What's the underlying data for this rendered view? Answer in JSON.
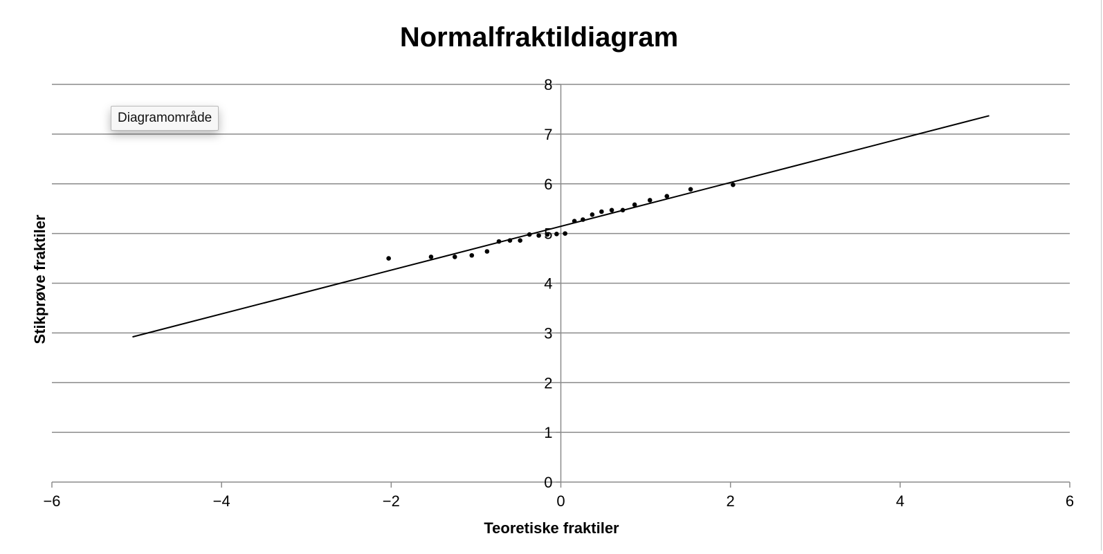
{
  "tooltip": {
    "label": "Diagramområde"
  },
  "chart_data": {
    "type": "scatter",
    "title": "Normalfraktildiagram",
    "xlabel": "Teoretiske fraktiler",
    "ylabel": "Stikprøve fraktiler",
    "xlim": [
      -6,
      6
    ],
    "ylim": [
      0,
      8
    ],
    "xticks": [
      -6,
      -4,
      -2,
      0,
      2,
      4,
      6
    ],
    "yticks": [
      0,
      1,
      2,
      3,
      4,
      5,
      6,
      7,
      8
    ],
    "grid": "horizontal",
    "legend": "none",
    "series": [
      {
        "marker": "dot",
        "x": [
          -2.03,
          -1.53,
          -1.25,
          -1.05,
          -0.87,
          -0.73,
          -0.6,
          -0.48,
          -0.37,
          -0.26,
          -0.16,
          -0.05,
          0.05,
          0.16,
          0.26,
          0.37,
          0.48,
          0.6,
          0.73,
          0.87,
          1.05,
          1.25,
          1.53,
          2.03
        ],
        "y": [
          4.5,
          4.53,
          4.53,
          4.56,
          4.64,
          4.84,
          4.86,
          4.86,
          4.98,
          4.96,
          4.98,
          4.99,
          5.0,
          5.25,
          5.28,
          5.38,
          5.44,
          5.47,
          5.47,
          5.58,
          5.67,
          5.75,
          5.89,
          5.98
        ]
      },
      {
        "marker": "line",
        "x": [
          -5.05,
          5.05
        ],
        "y": [
          2.92,
          7.37
        ]
      }
    ]
  }
}
